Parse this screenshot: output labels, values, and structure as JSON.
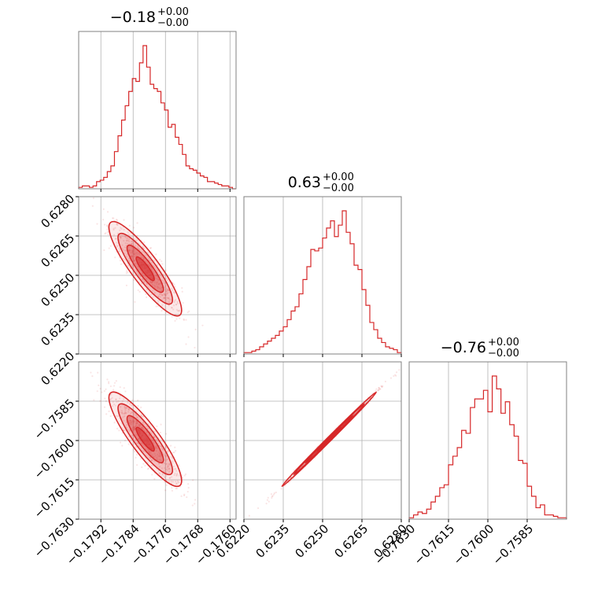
{
  "chart_data": {
    "type": "corner",
    "color": "#d62728",
    "parameters": [
      {
        "title_value": "−0.18",
        "title_plus": "+0.00",
        "title_minus": "−0.00",
        "range": [
          -0.17975,
          -0.17585
        ],
        "ticks": [
          -0.1792,
          -0.1784,
          -0.1776,
          -0.1768,
          -0.176
        ],
        "tick_labels": [
          "−0.1792",
          "−0.1784",
          "−0.1776",
          "−0.1768",
          "−0.1760"
        ],
        "center": -0.1781,
        "sd": 0.00045
      },
      {
        "title_value": "0.63",
        "title_plus": "+0.00",
        "title_minus": "−0.00",
        "range": [
          0.622,
          0.628
        ],
        "ticks": [
          0.622,
          0.6235,
          0.625,
          0.6265,
          0.628
        ],
        "tick_labels": [
          "0.6220",
          "0.6235",
          "0.6250",
          "0.6265",
          "0.6280"
        ],
        "center": 0.62525,
        "sd": 0.0009
      },
      {
        "title_value": "−0.76",
        "title_plus": "+0.00",
        "title_minus": "−0.00",
        "range": [
          -0.763,
          -0.757
        ],
        "ticks": [
          -0.763,
          -0.7615,
          -0.76,
          -0.7585
        ],
        "tick_labels": [
          "−0.7630",
          "−0.7615",
          "−0.7600",
          "−0.7585"
        ],
        "center": -0.75995,
        "sd": 0.0009
      }
    ],
    "histograms": [
      [
        0.01,
        0.02,
        0.02,
        0.01,
        0.02,
        0.05,
        0.06,
        0.08,
        0.12,
        0.16,
        0.26,
        0.37,
        0.48,
        0.58,
        0.68,
        0.77,
        0.75,
        0.88,
        1.0,
        0.85,
        0.73,
        0.7,
        0.68,
        0.6,
        0.55,
        0.43,
        0.45,
        0.36,
        0.31,
        0.24,
        0.16,
        0.14,
        0.13,
        0.11,
        0.09,
        0.08,
        0.05,
        0.05,
        0.04,
        0.03,
        0.02,
        0.02,
        0.01,
        0.0
      ],
      [
        0.01,
        0.01,
        0.02,
        0.03,
        0.05,
        0.07,
        0.09,
        0.11,
        0.13,
        0.16,
        0.19,
        0.24,
        0.3,
        0.33,
        0.42,
        0.52,
        0.61,
        0.73,
        0.72,
        0.74,
        0.81,
        0.88,
        0.93,
        0.82,
        0.9,
        1.0,
        0.85,
        0.77,
        0.62,
        0.59,
        0.45,
        0.34,
        0.22,
        0.17,
        0.11,
        0.08,
        0.05,
        0.04,
        0.03,
        0.01
      ],
      [
        0.01,
        0.03,
        0.05,
        0.04,
        0.07,
        0.12,
        0.16,
        0.22,
        0.24,
        0.38,
        0.44,
        0.5,
        0.62,
        0.6,
        0.78,
        0.84,
        0.84,
        0.9,
        0.75,
        1.0,
        0.91,
        0.74,
        0.82,
        0.66,
        0.58,
        0.41,
        0.39,
        0.23,
        0.16,
        0.08,
        0.1,
        0.03,
        0.03,
        0.02,
        0.01,
        0.01
      ]
    ],
    "correlations": {
      "1_0": -0.88,
      "2_0": -0.88,
      "2_1": 0.998
    },
    "grid": true
  }
}
